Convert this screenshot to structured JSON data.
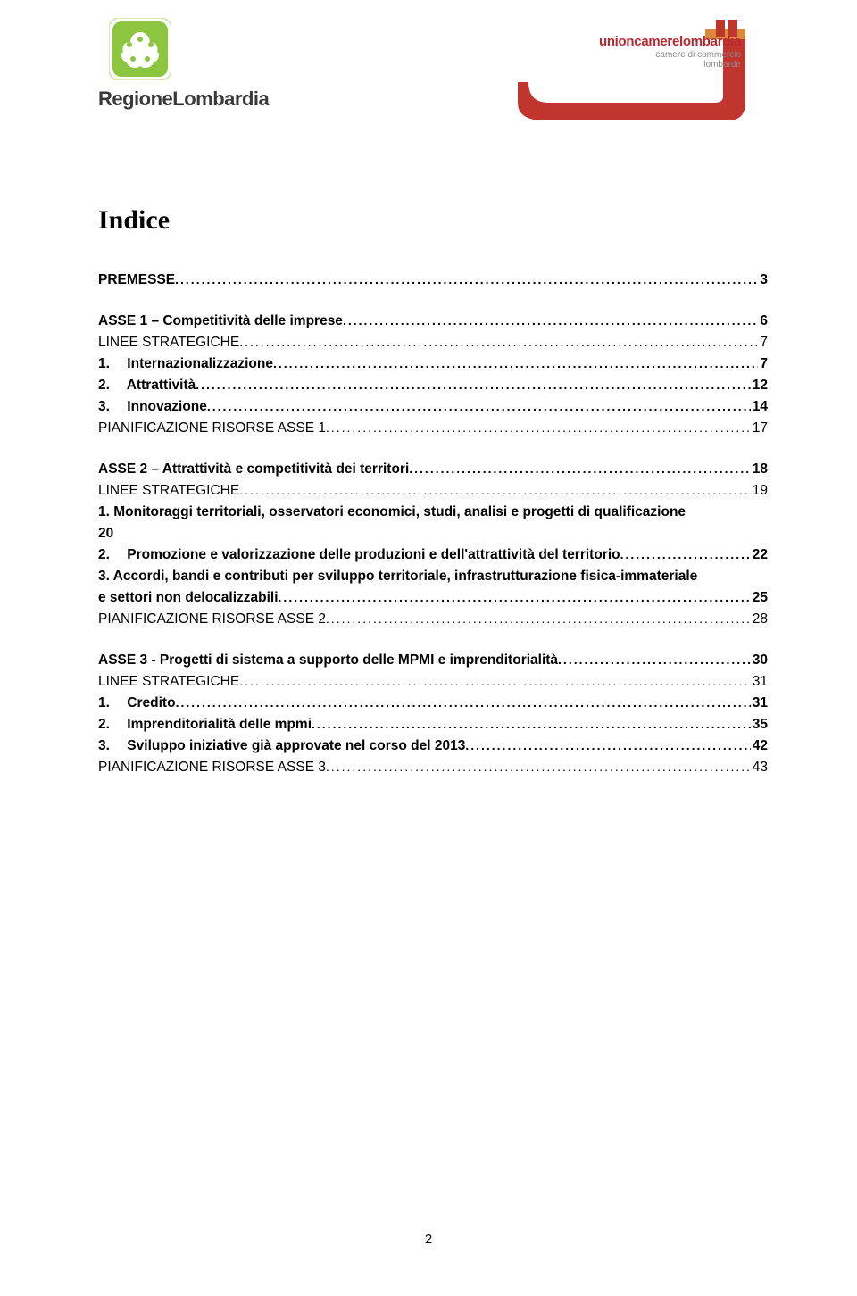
{
  "header": {
    "left": {
      "icon_bg": "#8cc63f",
      "icon_fg": "#ffffff",
      "text": "RegioneLombardia",
      "text_color": "#3a3a3a"
    },
    "right": {
      "line1": "unioncamerelombardia",
      "line2": "camere di commercio\nlombarde",
      "brand_color": "#b8292f",
      "sub_color": "#888888",
      "shape_red": "#c0352e",
      "shape_orange": "#d98a3a"
    }
  },
  "title": "Indice",
  "toc": [
    {
      "group": [
        {
          "label": "PREMESSE",
          "page": "3",
          "bold": true
        }
      ]
    },
    {
      "group": [
        {
          "label": "ASSE 1 – Competitività delle imprese",
          "page": "6",
          "bold": true
        },
        {
          "label": "LINEE STRATEGICHE",
          "page": "7",
          "bold": false
        },
        {
          "num": "1.",
          "label": "Internazionalizzazione",
          "page": "7",
          "bold": true
        },
        {
          "num": "2.",
          "label": "Attrattività",
          "page": "12",
          "bold": true
        },
        {
          "num": "3.",
          "label": "Innovazione",
          "page": "14",
          "bold": true
        },
        {
          "label": "PIANIFICAZIONE RISORSE ASSE 1",
          "page": "17",
          "bold": false
        }
      ]
    },
    {
      "group": [
        {
          "label": "ASSE 2 – Attrattività e competitività dei territori",
          "page": "18",
          "bold": true
        },
        {
          "label": "LINEE STRATEGICHE",
          "page": "19",
          "bold": false
        },
        {
          "num": "1.",
          "label_lines": [
            "Monitoraggi territoriali, osservatori economici, studi, analisi e progetti di qualificazione"
          ],
          "last_line": "20",
          "page": "",
          "bold": true
        },
        {
          "num": "2.",
          "label": "Promozione e valorizzazione delle produzioni e dell'attrattività del territorio",
          "page": "22",
          "bold": true
        },
        {
          "num": "3.",
          "label_lines": [
            "Accordi, bandi e contributi per sviluppo territoriale, infrastrutturazione fisica-immateriale"
          ],
          "last_line": "e settori non delocalizzabili",
          "page": "25",
          "bold": true
        },
        {
          "label": "PIANIFICAZIONE RISORSE ASSE 2",
          "page": "28",
          "bold": false
        }
      ]
    },
    {
      "group": [
        {
          "label": "ASSE 3 - Progetti di sistema a supporto delle MPMI e imprenditorialità",
          "page": "30",
          "bold": true
        },
        {
          "label": "LINEE STRATEGICHE",
          "page": "31",
          "bold": false
        },
        {
          "num": "1.",
          "label": "Credito",
          "page": "31",
          "bold": true
        },
        {
          "num": "2.",
          "label": "Imprenditorialità delle mpmi",
          "page": "35",
          "bold": true
        },
        {
          "num": "3.",
          "label": "Sviluppo iniziative già approvate nel corso del 2013",
          "page": "42",
          "bold": true
        },
        {
          "label": "PIANIFICAZIONE RISORSE ASSE 3",
          "page": "43",
          "bold": false
        }
      ]
    }
  ],
  "page_number": "2"
}
